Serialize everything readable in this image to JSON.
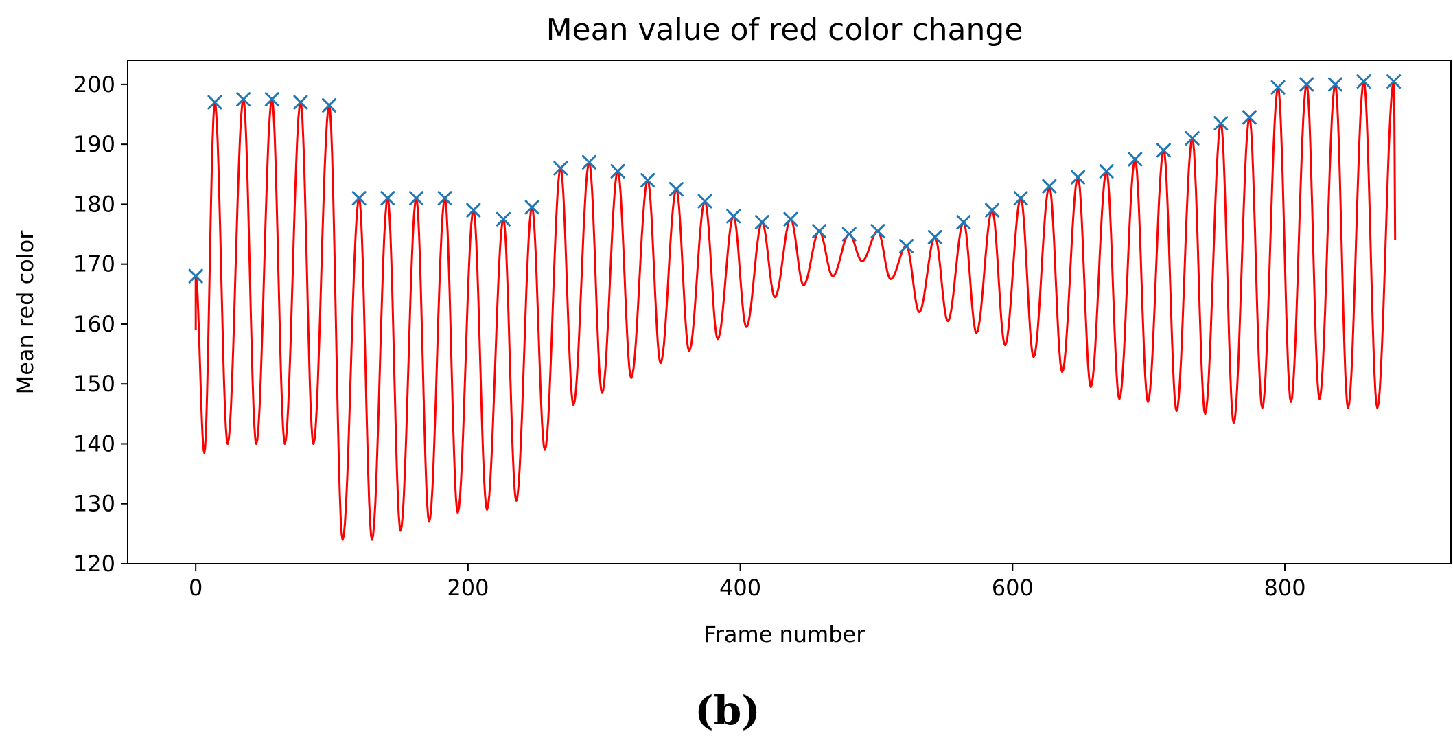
{
  "caption": "(b)",
  "chart_data": {
    "type": "line",
    "title": "Mean value of red color change",
    "xlabel": "Frame number",
    "ylabel": "Mean red color",
    "xlim": [
      -50,
      922
    ],
    "ylim": [
      120,
      204
    ],
    "xticks": [
      0,
      200,
      400,
      600,
      800
    ],
    "yticks": [
      120,
      130,
      140,
      150,
      160,
      170,
      180,
      190,
      200
    ],
    "grid": false,
    "series": [
      {
        "name": "Mean red color",
        "color": "#ff0000",
        "start_value": 159,
        "end_value": 174,
        "x_end": 880,
        "peaks_x": [
          0,
          14,
          35,
          56,
          77,
          98,
          120,
          141,
          162,
          183,
          204,
          226,
          247,
          268,
          289,
          310,
          332,
          353,
          374,
          395,
          416,
          437,
          458,
          480,
          501,
          522,
          543,
          564,
          585,
          606,
          627,
          648,
          669,
          690,
          711,
          732,
          753,
          774,
          795,
          816,
          837,
          858,
          880
        ],
        "peaks_y": [
          168,
          197,
          197.5,
          197.5,
          197,
          196.5,
          181,
          181,
          181,
          181,
          179,
          177.5,
          179.5,
          186,
          187,
          185.5,
          184,
          182.5,
          180.5,
          178,
          177,
          177.5,
          175.5,
          175,
          175.5,
          173,
          174.5,
          177,
          179,
          181,
          183,
          184.5,
          185.5,
          187.5,
          189,
          191,
          193.5,
          194.5,
          199.5,
          200,
          200,
          200.5,
          200.5
        ],
        "troughs_y": [
          138.5,
          140,
          140,
          140,
          140,
          124,
          124,
          125.5,
          127,
          128.5,
          129,
          130.5,
          139,
          146.5,
          148.5,
          151,
          153.5,
          155.5,
          157.5,
          159.5,
          164.5,
          166.5,
          168,
          170.5,
          167.5,
          162,
          160.5,
          158.5,
          156.5,
          154.5,
          152,
          149.5,
          147.5,
          147,
          145.5,
          145,
          143.5,
          146,
          147,
          147.5,
          146,
          146
        ]
      },
      {
        "name": "Detected peaks",
        "color": "#1f77b4",
        "marker": "x",
        "x": [
          0,
          14,
          35,
          56,
          77,
          98,
          120,
          141,
          162,
          183,
          204,
          226,
          247,
          268,
          289,
          310,
          332,
          353,
          374,
          395,
          416,
          437,
          458,
          480,
          501,
          522,
          543,
          564,
          585,
          606,
          627,
          648,
          669,
          690,
          711,
          732,
          753,
          774,
          795,
          816,
          837,
          858,
          880
        ],
        "y": [
          168,
          197,
          197.5,
          197.5,
          197,
          196.5,
          181,
          181,
          181,
          181,
          179,
          177.5,
          179.5,
          186,
          187,
          185.5,
          184,
          182.5,
          180.5,
          178,
          177,
          177.5,
          175.5,
          175,
          175.5,
          173,
          174.5,
          177,
          179,
          181,
          183,
          184.5,
          185.5,
          187.5,
          189,
          191,
          193.5,
          194.5,
          199.5,
          200,
          200,
          200.5,
          200.5
        ]
      }
    ]
  }
}
